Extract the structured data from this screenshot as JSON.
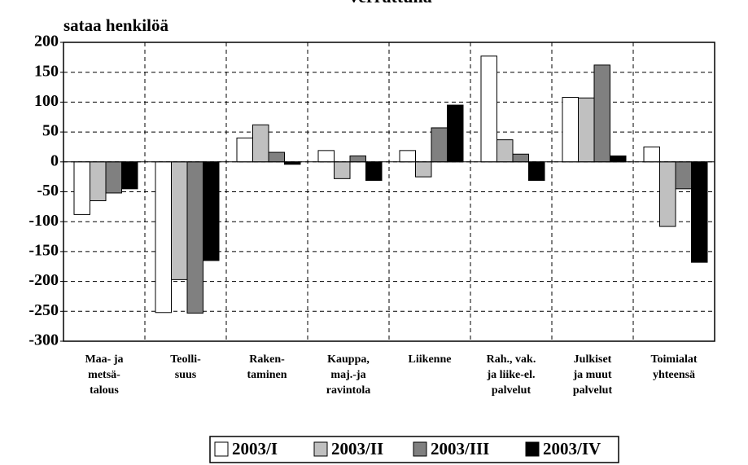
{
  "chart_data": {
    "type": "bar",
    "title": "verrattuna",
    "y_label": "sataa henkilöä",
    "categories": [
      "Maa- ja\nmetsä-\ntalous",
      "Teolli-\nsuus",
      "Raken-\ntaminen",
      "Kauppa,\nmaj.-ja\nravintola",
      "Liikenne",
      "Rah., vak.\nja liike-el.\npalvelut",
      "Julkiset\nja muut\npalvelut",
      "Toimialat\nyhteensä"
    ],
    "series": [
      {
        "name": "2003/I",
        "color": "#ffffff",
        "values": [
          -88,
          -252,
          40,
          19,
          19,
          177,
          108,
          25
        ]
      },
      {
        "name": "2003/II",
        "color": "#c0c0c0",
        "values": [
          -65,
          -197,
          62,
          -28,
          -25,
          37,
          107,
          -108
        ]
      },
      {
        "name": "2003/III",
        "color": "#808080",
        "values": [
          -52,
          -253,
          16,
          10,
          57,
          13,
          162,
          -45
        ]
      },
      {
        "name": "2003/IV",
        "color": "#000000",
        "values": [
          -45,
          -165,
          -4,
          -31,
          95,
          -31,
          10,
          -168
        ]
      }
    ],
    "ylim": [
      -300,
      200
    ],
    "yticks": [
      -300,
      -250,
      -200,
      -150,
      -100,
      -50,
      0,
      50,
      100,
      150,
      200
    ],
    "grid": true,
    "legend": "bottom"
  }
}
